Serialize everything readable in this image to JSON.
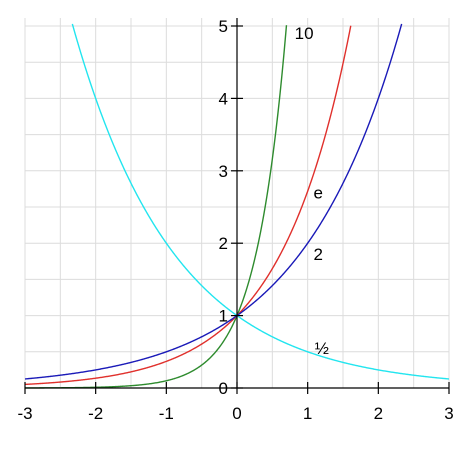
{
  "chart_data": {
    "type": "line",
    "title": "",
    "xlabel": "",
    "ylabel": "",
    "xlim": [
      -3,
      3
    ],
    "ylim": [
      0,
      5
    ],
    "grid": true,
    "x_ticks": [
      "-3",
      "-2",
      "-1",
      "0",
      "1",
      "2",
      "3"
    ],
    "y_ticks": [
      "0",
      "1",
      "2",
      "3",
      "4",
      "5"
    ],
    "series": [
      {
        "name": "10",
        "base": 10,
        "color": "#2e8b2e",
        "x": [
          -3,
          -2,
          -1.5,
          -1,
          -0.75,
          -0.5,
          -0.25,
          0,
          0.25,
          0.5,
          0.6,
          0.7
        ],
        "y": [
          0.001,
          0.01,
          0.032,
          0.1,
          0.178,
          0.316,
          0.562,
          1,
          1.778,
          3.162,
          3.981,
          5.012
        ]
      },
      {
        "name": "e",
        "base": 2.71828,
        "color": "#e0302c",
        "x": [
          -3,
          -2,
          -1.5,
          -1,
          -0.5,
          0,
          0.5,
          1,
          1.25,
          1.5,
          1.61
        ],
        "y": [
          0.05,
          0.135,
          0.223,
          0.368,
          0.607,
          1,
          1.649,
          2.718,
          3.49,
          4.482,
          5.003
        ]
      },
      {
        "name": "2",
        "base": 2,
        "color": "#1a1ab8",
        "x": [
          -3,
          -2,
          -1.5,
          -1,
          -0.5,
          0,
          0.5,
          1,
          1.5,
          2,
          2.25,
          2.32
        ],
        "y": [
          0.125,
          0.25,
          0.354,
          0.5,
          0.707,
          1,
          1.414,
          2,
          2.828,
          4,
          4.757,
          4.993
        ]
      },
      {
        "name": "½",
        "base": 0.5,
        "color": "#22e5ef",
        "x": [
          -2.32,
          -2,
          -1.5,
          -1,
          -0.5,
          0,
          0.5,
          1,
          1.5,
          2,
          2.5,
          3
        ],
        "y": [
          4.993,
          4,
          2.828,
          2,
          1.414,
          1,
          0.707,
          0.5,
          0.354,
          0.25,
          0.177,
          0.125
        ]
      }
    ],
    "labels": [
      {
        "series": "10",
        "text": "10",
        "x": 0.95,
        "y": 4.9
      },
      {
        "series": "e",
        "text": "e",
        "x": 1.15,
        "y": 2.7
      },
      {
        "series": "2",
        "text": "2",
        "x": 1.15,
        "y": 1.85
      },
      {
        "series": "½",
        "text": "½",
        "x": 1.2,
        "y": 0.55
      }
    ]
  }
}
